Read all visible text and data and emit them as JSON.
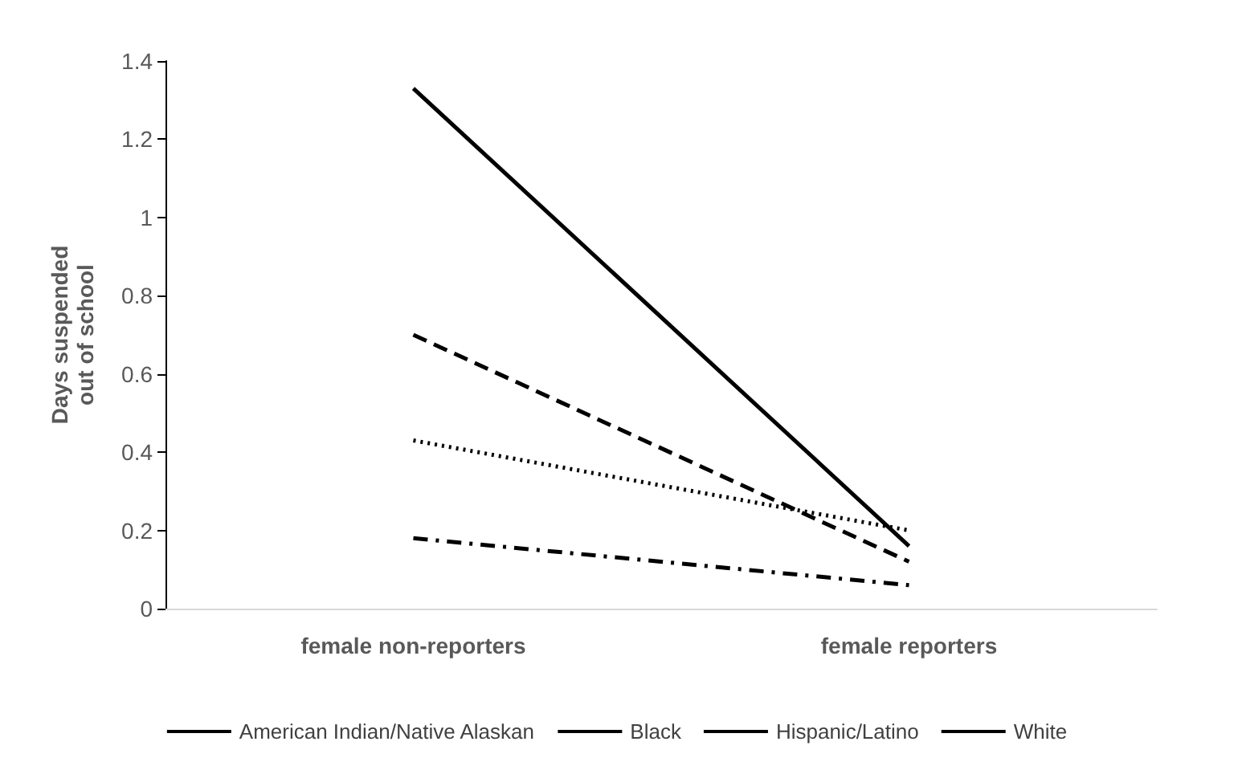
{
  "chart_data": {
    "type": "line",
    "ylabel": "Days suspended\nout of school",
    "categories": [
      "female non-reporters",
      "female reporters"
    ],
    "series": [
      {
        "name": "American Indian/Native Alaskan",
        "color": "#000000",
        "line_style": "solid",
        "values": [
          1.33,
          0.16
        ]
      },
      {
        "name": "Black",
        "color": "#000000",
        "line_style": "dotted",
        "values": [
          0.43,
          0.2
        ]
      },
      {
        "name": "Hispanic/Latino",
        "color": "#000000",
        "line_style": "dashed",
        "values": [
          0.7,
          0.12
        ]
      },
      {
        "name": "White",
        "color": "#000000",
        "line_style": "dashdot",
        "values": [
          0.18,
          0.06
        ]
      }
    ],
    "ylim": [
      0,
      1.4
    ],
    "yticks": [
      0,
      0.2,
      0.4,
      0.6,
      0.8,
      1,
      1.2,
      1.4
    ],
    "grid": false,
    "legend": "bottom",
    "marker": "none"
  }
}
